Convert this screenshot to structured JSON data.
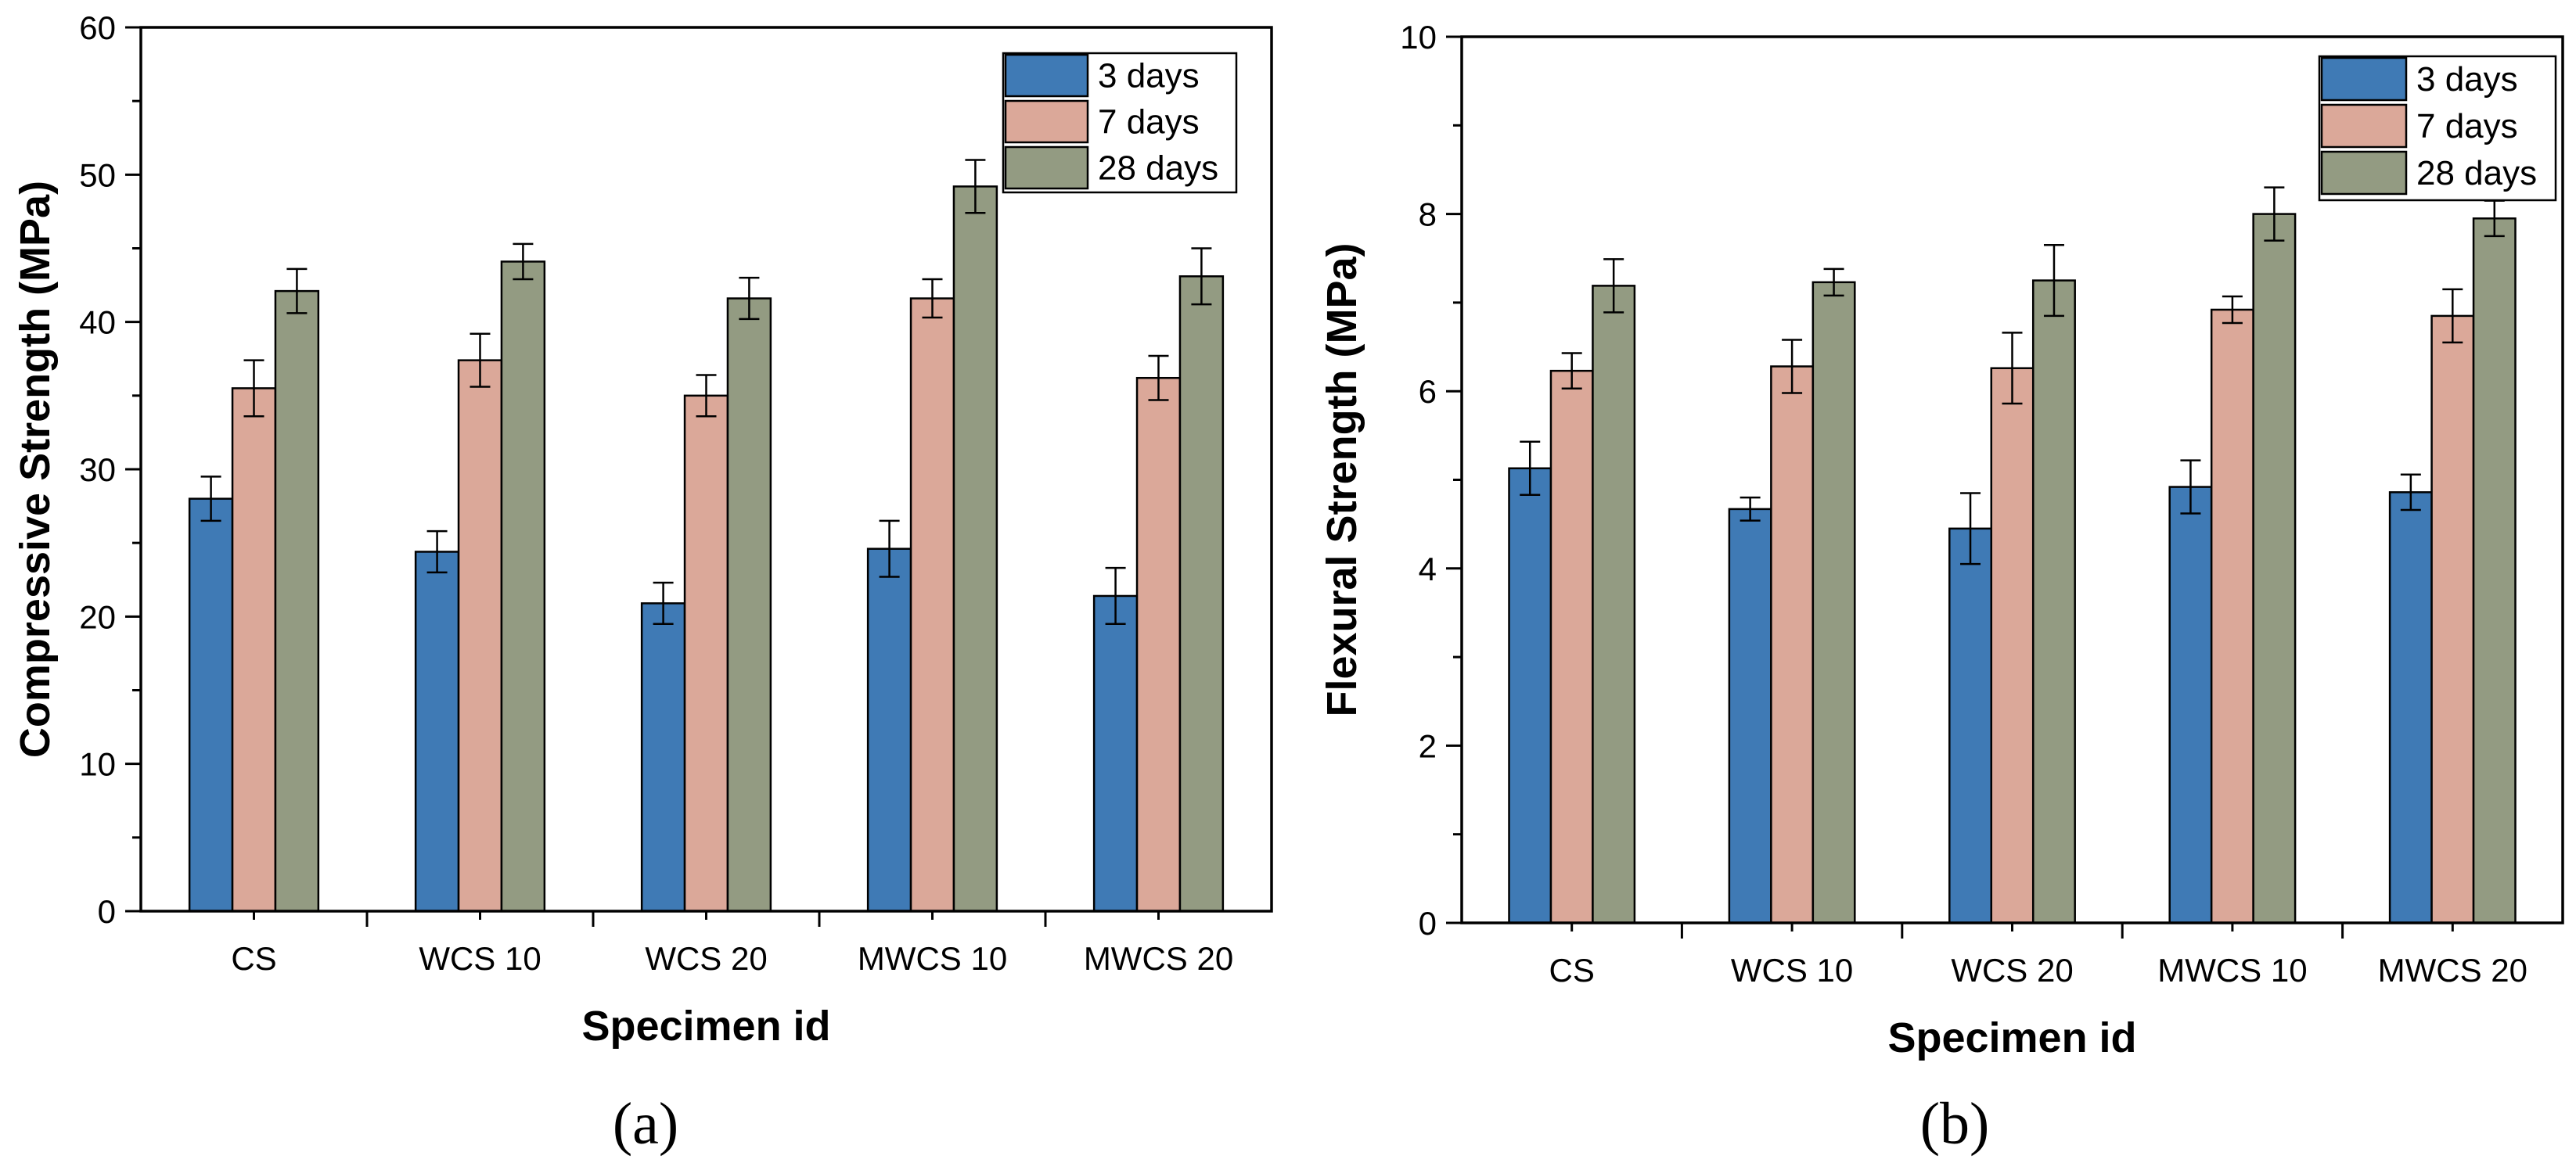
{
  "chart_data": [
    {
      "type": "bar",
      "panel": "(a)",
      "title": "",
      "xlabel": "Specimen id",
      "ylabel": "Compressive Strength (MPa)",
      "ylim": [
        0,
        60
      ],
      "yticks": [
        0,
        10,
        20,
        30,
        40,
        50,
        60
      ],
      "categories": [
        "CS",
        "WCS 10",
        "WCS 20",
        "MWCS 10",
        "MWCS 20"
      ],
      "series": [
        {
          "name": "3 days",
          "color": "#3f7ab5",
          "values": [
            28.0,
            24.4,
            20.9,
            24.6,
            21.4
          ],
          "errors": [
            1.5,
            1.4,
            1.4,
            1.9,
            1.9
          ]
        },
        {
          "name": "7 days",
          "color": "#dba899",
          "values": [
            35.5,
            37.4,
            35.0,
            41.6,
            36.2
          ],
          "errors": [
            1.9,
            1.8,
            1.4,
            1.3,
            1.5
          ]
        },
        {
          "name": "28 days",
          "color": "#939b82",
          "values": [
            42.1,
            44.1,
            41.6,
            49.2,
            43.1
          ],
          "errors": [
            1.5,
            1.2,
            1.4,
            1.8,
            1.9
          ]
        }
      ],
      "legend_position": "top-right"
    },
    {
      "type": "bar",
      "panel": "(b)",
      "title": "",
      "xlabel": "Specimen id",
      "ylabel": "Flexural Strength (MPa)",
      "ylim": [
        0,
        10
      ],
      "yticks": [
        0,
        2,
        4,
        6,
        8,
        10
      ],
      "categories": [
        "CS",
        "WCS 10",
        "WCS 20",
        "MWCS 10",
        "MWCS 20"
      ],
      "series": [
        {
          "name": "3 days",
          "color": "#3f7ab5",
          "values": [
            5.13,
            4.67,
            4.45,
            4.92,
            4.86
          ],
          "errors": [
            0.3,
            0.13,
            0.4,
            0.3,
            0.2
          ]
        },
        {
          "name": "7 days",
          "color": "#dba899",
          "values": [
            6.23,
            6.28,
            6.26,
            6.92,
            6.85
          ],
          "errors": [
            0.2,
            0.3,
            0.4,
            0.15,
            0.3
          ]
        },
        {
          "name": "28 days",
          "color": "#939b82",
          "values": [
            7.19,
            7.23,
            7.25,
            8.0,
            7.95
          ],
          "errors": [
            0.3,
            0.15,
            0.4,
            0.3,
            0.2
          ]
        }
      ],
      "legend_position": "top-right"
    }
  ]
}
